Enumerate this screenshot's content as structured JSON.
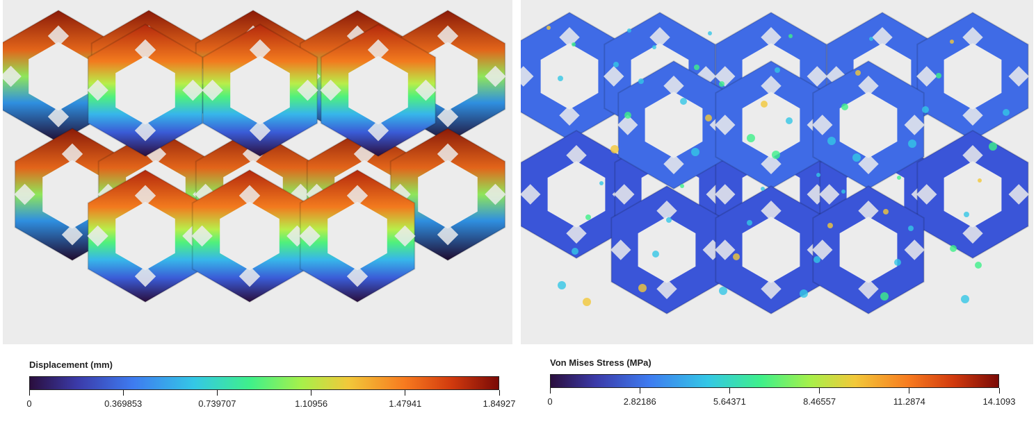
{
  "left_legend": {
    "title": "Displacement (mm)",
    "ticks": [
      "0",
      "0.369853",
      "0.739707",
      "1.10956",
      "1.47941",
      "1.84927"
    ]
  },
  "right_legend": {
    "title": "Von Mises Stress (MPa)",
    "ticks": [
      "0",
      "2.82186",
      "5.64371",
      "8.46557",
      "11.2874",
      "14.1093"
    ]
  },
  "colormap": [
    "#2a0e3d",
    "#3b3aa8",
    "#3e7bf0",
    "#34c7e6",
    "#3ff08a",
    "#a7f04a",
    "#f2c83a",
    "#f77a1f",
    "#d13a0e",
    "#7a0a06"
  ],
  "panels": {
    "left": "displacement-lattice-render",
    "right": "von-mises-stress-lattice-render"
  }
}
